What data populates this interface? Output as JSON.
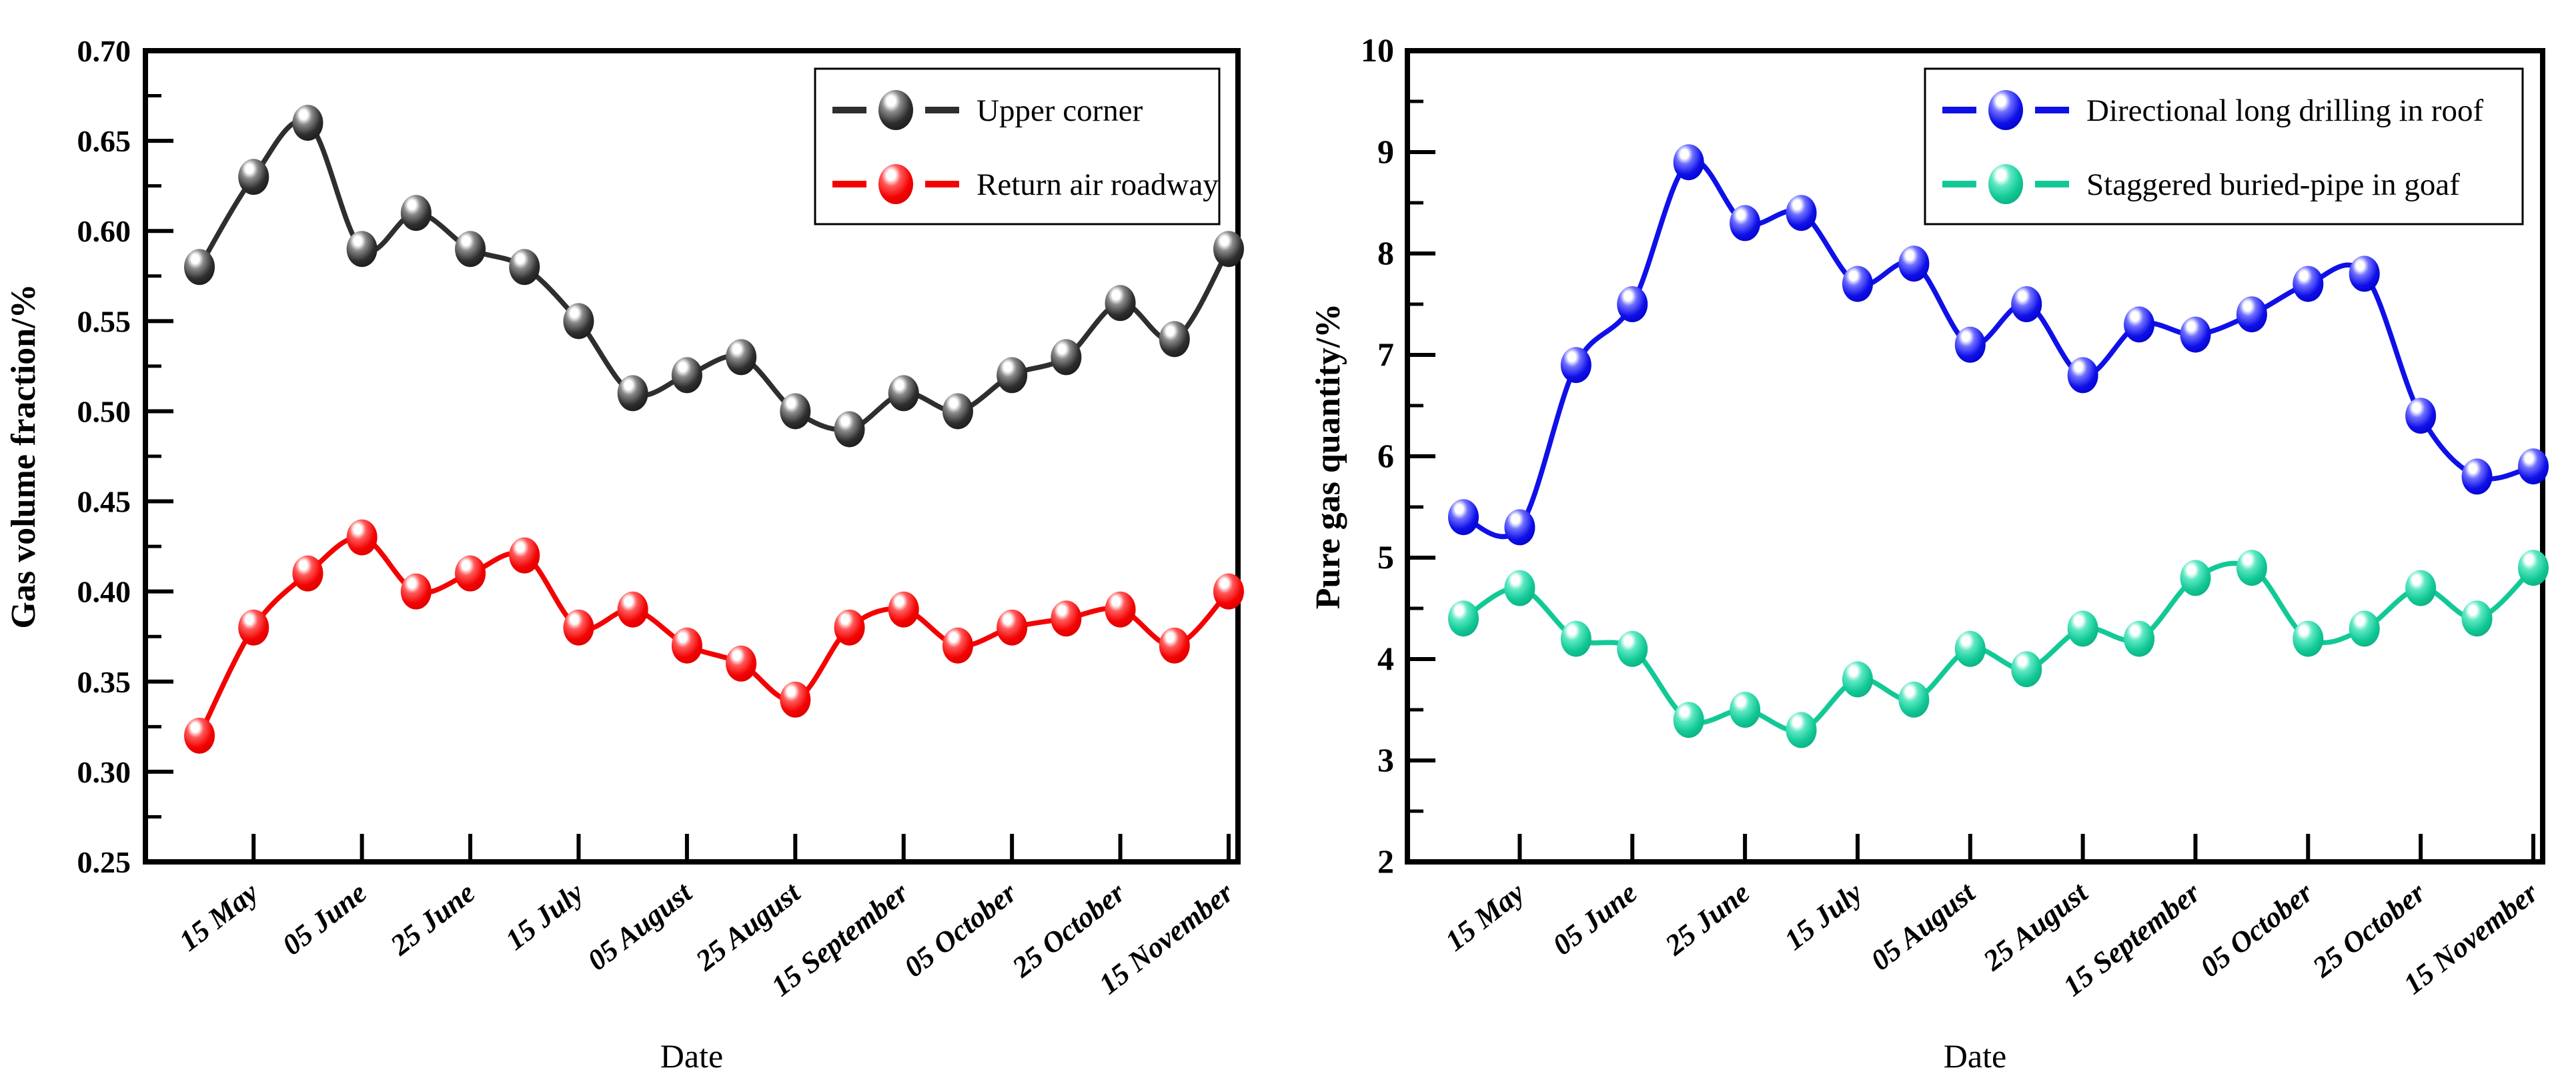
{
  "figure": {
    "background": "#ffffff",
    "axis_color": "#000000",
    "legend_border_color": "#000000",
    "legend_background": "#ffffff"
  },
  "chart_data": [
    {
      "type": "line",
      "title": "",
      "xlabel": "Date",
      "ylabel": "Gas volume fraction/%",
      "ylim": [
        0.25,
        0.7
      ],
      "grid": false,
      "legend_position": "top-right",
      "ytick_labels": [
        "0.25",
        "0.30",
        "0.35",
        "0.40",
        "0.45",
        "0.50",
        "0.55",
        "0.60",
        "0.65",
        "0.70"
      ],
      "ytick_values": [
        0.25,
        0.3,
        0.35,
        0.4,
        0.45,
        0.5,
        0.55,
        0.6,
        0.65,
        0.7
      ],
      "yminor_ticks": [
        0.275,
        0.325,
        0.375,
        0.425,
        0.475,
        0.525,
        0.575,
        0.625,
        0.675
      ],
      "categories": [
        "15 May",
        "05 June",
        "25 June",
        "15 July",
        "05 August",
        "25 August",
        "15 September",
        "05 October",
        "25 October",
        "15 November"
      ],
      "category_indices": [
        1,
        3,
        5,
        7,
        9,
        11,
        13,
        15,
        17,
        19
      ],
      "series": [
        {
          "name": "Upper corner",
          "color": "#2e2e2e",
          "color_light": "#8a8a8a",
          "color_dark": "#161616",
          "values": [
            0.58,
            0.63,
            0.66,
            0.59,
            0.61,
            0.59,
            0.58,
            0.55,
            0.51,
            0.52,
            0.53,
            0.5,
            0.49,
            0.51,
            0.5,
            0.52,
            0.53,
            0.56,
            0.54,
            0.59
          ]
        },
        {
          "name": "Return air roadway",
          "color": "#f30202",
          "color_light": "#ff5a5a",
          "color_dark": "#d80000",
          "values": [
            0.32,
            0.38,
            0.41,
            0.43,
            0.4,
            0.41,
            0.42,
            0.38,
            0.39,
            0.37,
            0.36,
            0.34,
            0.38,
            0.39,
            0.37,
            0.38,
            0.385,
            0.39,
            0.37,
            0.4
          ]
        }
      ]
    },
    {
      "type": "line",
      "title": "",
      "xlabel": "Date",
      "ylabel": "Pure gas quantity/%",
      "ylim": [
        2,
        10
      ],
      "grid": false,
      "legend_position": "top-right",
      "ytick_labels": [
        "2",
        "3",
        "4",
        "5",
        "6",
        "7",
        "8",
        "9",
        "10"
      ],
      "ytick_values": [
        2,
        3,
        4,
        5,
        6,
        7,
        8,
        9,
        10
      ],
      "yminor_ticks": [
        2.5,
        3.5,
        4.5,
        5.5,
        6.5,
        7.5,
        8.5,
        9.5
      ],
      "categories": [
        "15 May",
        "05 June",
        "25 June",
        "15 July",
        "05 August",
        "25 August",
        "15 September",
        "05 October",
        "25 October",
        "15 November"
      ],
      "category_indices": [
        1,
        3,
        5,
        7,
        9,
        11,
        13,
        15,
        17,
        19
      ],
      "series": [
        {
          "name": "Directional long drilling in roof",
          "color": "#0f10e8",
          "color_light": "#7070ff",
          "color_dark": "#0000c4",
          "values": [
            5.4,
            5.3,
            6.9,
            7.5,
            8.9,
            8.3,
            8.4,
            7.7,
            7.9,
            7.1,
            7.5,
            6.8,
            7.3,
            7.2,
            7.4,
            7.7,
            7.8,
            6.4,
            5.8,
            5.9
          ]
        },
        {
          "name": "Staggered buried-pipe in goaf",
          "color": "#12c996",
          "color_light": "#5ee8c4",
          "color_dark": "#0ba87d",
          "values": [
            4.4,
            4.7,
            4.2,
            4.1,
            3.4,
            3.5,
            3.3,
            3.8,
            3.6,
            4.1,
            3.9,
            4.3,
            4.2,
            4.8,
            4.9,
            4.2,
            4.3,
            4.7,
            4.4,
            4.9
          ]
        }
      ]
    }
  ]
}
